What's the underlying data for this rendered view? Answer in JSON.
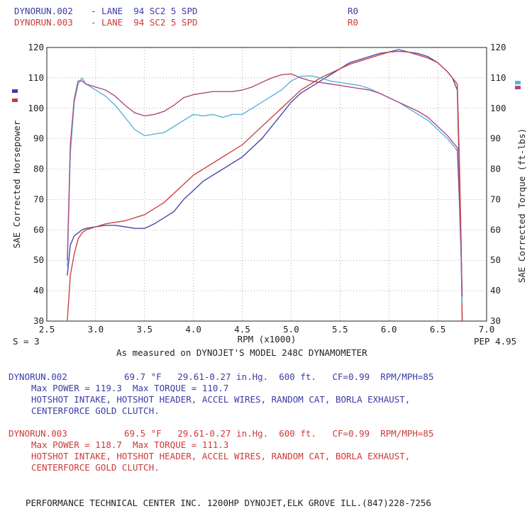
{
  "header": {
    "run1": {
      "name": "DYNORUN.002",
      "label": "- LANE  94 SC2 5 SPD",
      "code": "R0"
    },
    "run2": {
      "name": "DYNORUN.003",
      "label": "- LANE  94 SC2 5 SPD",
      "code": "R0"
    }
  },
  "smoothing": "S = 3",
  "pep": "PEP 4.95",
  "measured": "As measured on DYNOJET'S MODEL 248C DYNAMOMETER",
  "runs": [
    {
      "name": "DYNORUN.002",
      "conditions": "69.7 °F   29.61-0.27 in.Hg.  600 ft.   CF=0.99  RPM/MPH=85",
      "max_line": "Max POWER = 119.3  Max TORQUE = 110.7",
      "mods1": "HOTSHOT INTAKE, HOTSHOT HEADER, ACCEL WIRES, RANDOM CAT, BORLA EXHAUST,",
      "mods2": "CENTERFORCE GOLD CLUTCH."
    },
    {
      "name": "DYNORUN.003",
      "conditions": "69.5 °F   29.61-0.27 in.Hg.  600 ft.   CF=0.99  RPM/MPH=85",
      "max_line": "Max POWER = 118.7  Max TORQUE = 111.3",
      "mods1": "HOTSHOT INTAKE, HOTSHOT HEADER, ACCEL WIRES, RANDOM CAT, BORLA EXHAUST,",
      "mods2": "CENTERFORCE GOLD CLUTCH."
    }
  ],
  "footer": "PERFORMANCE TECHNICAL CENTER INC. 1200HP DYNOJET,ELK GROVE ILL.(847)228-7256",
  "chart_data": {
    "type": "line",
    "xlabel": "RPM (x1000)",
    "ylabel_left": "SAE Corrected Horsepower",
    "ylabel_right": "SAE Corrected Torque (ft-lbs)",
    "xlim": [
      2.5,
      7.0
    ],
    "ylim": [
      30,
      120
    ],
    "x_ticks": [
      "2.5",
      "3.0",
      "3.5",
      "4.0",
      "4.5",
      "5.0",
      "5.5",
      "6.0",
      "6.5",
      "7.0"
    ],
    "y_ticks": [
      "30",
      "40",
      "50",
      "60",
      "70",
      "80",
      "90",
      "100",
      "110",
      "120"
    ],
    "grid": true,
    "colors": {
      "run002_power": "#4a4aa8",
      "run003_power": "#cc4444",
      "run002_torque": "#5ab4dc",
      "run003_torque": "#b04a80"
    },
    "series": [
      {
        "name": "DYNORUN.002",
        "metric": "power",
        "x": [
          2.71,
          2.74,
          2.78,
          2.82,
          2.86,
          2.9,
          3.0,
          3.1,
          3.2,
          3.3,
          3.4,
          3.5,
          3.6,
          3.7,
          3.8,
          3.9,
          4.0,
          4.1,
          4.2,
          4.3,
          4.4,
          4.5,
          4.6,
          4.7,
          4.8,
          4.9,
          5.0,
          5.1,
          5.2,
          5.3,
          5.4,
          5.5,
          5.6,
          5.7,
          5.8,
          5.9,
          6.0,
          6.1,
          6.2,
          6.3,
          6.4,
          6.5,
          6.6,
          6.65,
          6.7,
          6.72,
          6.74,
          6.75
        ],
        "y": [
          45,
          55,
          58,
          59,
          60,
          60.5,
          61,
          61.5,
          61.5,
          61,
          60.5,
          60.5,
          62,
          64,
          66,
          70,
          73,
          76,
          78,
          80,
          82,
          84,
          87,
          90,
          94,
          98,
          102,
          105,
          107,
          109,
          111,
          113,
          115,
          116,
          117,
          118,
          118.5,
          119.3,
          118.5,
          118,
          117,
          115,
          112,
          110,
          106,
          80,
          50,
          30
        ]
      },
      {
        "name": "DYNORUN.003",
        "metric": "power",
        "x": [
          2.71,
          2.74,
          2.78,
          2.82,
          2.86,
          2.9,
          3.0,
          3.1,
          3.2,
          3.3,
          3.4,
          3.5,
          3.6,
          3.7,
          3.8,
          3.9,
          4.0,
          4.1,
          4.2,
          4.3,
          4.4,
          4.5,
          4.6,
          4.7,
          4.8,
          4.9,
          5.0,
          5.1,
          5.2,
          5.3,
          5.4,
          5.5,
          5.6,
          5.7,
          5.8,
          5.9,
          6.0,
          6.1,
          6.2,
          6.3,
          6.4,
          6.5,
          6.6,
          6.65,
          6.7,
          6.72,
          6.74,
          6.75
        ],
        "y": [
          30,
          45,
          52,
          57,
          59,
          60,
          61,
          62,
          62.5,
          63,
          64,
          65,
          67,
          69,
          72,
          75,
          78,
          80,
          82,
          84,
          86,
          88,
          91,
          94,
          97,
          100,
          103,
          106,
          108,
          110,
          111.5,
          113,
          114.5,
          115.5,
          116.5,
          117.5,
          118.5,
          118.7,
          118.5,
          117.5,
          116.5,
          115,
          112,
          110,
          108,
          85,
          55,
          30
        ]
      },
      {
        "name": "DYNORUN.002",
        "metric": "torque",
        "x": [
          2.71,
          2.74,
          2.78,
          2.82,
          2.86,
          2.9,
          3.0,
          3.1,
          3.2,
          3.3,
          3.4,
          3.5,
          3.6,
          3.7,
          3.8,
          3.9,
          4.0,
          4.1,
          4.2,
          4.3,
          4.4,
          4.5,
          4.6,
          4.7,
          4.8,
          4.9,
          5.0,
          5.1,
          5.2,
          5.3,
          5.4,
          5.5,
          5.6,
          5.7,
          5.8,
          5.9,
          6.0,
          6.1,
          6.2,
          6.3,
          6.4,
          6.5,
          6.6,
          6.65,
          6.7,
          6.72,
          6.74,
          6.75
        ],
        "y": [
          48,
          85,
          102,
          108,
          110,
          108,
          106,
          104,
          101,
          97,
          93,
          91,
          91.5,
          92,
          94,
          96,
          98,
          97.5,
          98,
          97,
          98,
          98,
          100,
          102,
          104,
          106,
          109,
          110.5,
          110.7,
          110,
          109,
          108.5,
          108,
          107.5,
          106.5,
          105,
          103.5,
          102,
          100,
          98,
          96,
          93,
          90,
          88,
          86,
          70,
          50,
          36
        ]
      },
      {
        "name": "DYNORUN.003",
        "metric": "torque",
        "x": [
          2.71,
          2.74,
          2.78,
          2.82,
          2.86,
          2.9,
          3.0,
          3.1,
          3.2,
          3.3,
          3.4,
          3.5,
          3.6,
          3.7,
          3.8,
          3.9,
          4.0,
          4.1,
          4.2,
          4.3,
          4.4,
          4.5,
          4.6,
          4.7,
          4.8,
          4.9,
          5.0,
          5.1,
          5.2,
          5.3,
          5.4,
          5.5,
          5.6,
          5.7,
          5.8,
          5.9,
          6.0,
          6.1,
          6.2,
          6.3,
          6.4,
          6.5,
          6.6,
          6.65,
          6.7,
          6.72,
          6.74,
          6.75
        ],
        "y": [
          50,
          88,
          103,
          109,
          109,
          108,
          107,
          106,
          104,
          101,
          98.5,
          97.5,
          98,
          99,
          101,
          103.5,
          104.5,
          105,
          105.5,
          105.5,
          105.5,
          106,
          107,
          108.5,
          110,
          111,
          111.3,
          110,
          109,
          108.5,
          108,
          107.5,
          107,
          106.5,
          106,
          105,
          103.5,
          102,
          100.5,
          99,
          97,
          94,
          91,
          89,
          87,
          72,
          52,
          38
        ]
      }
    ]
  }
}
